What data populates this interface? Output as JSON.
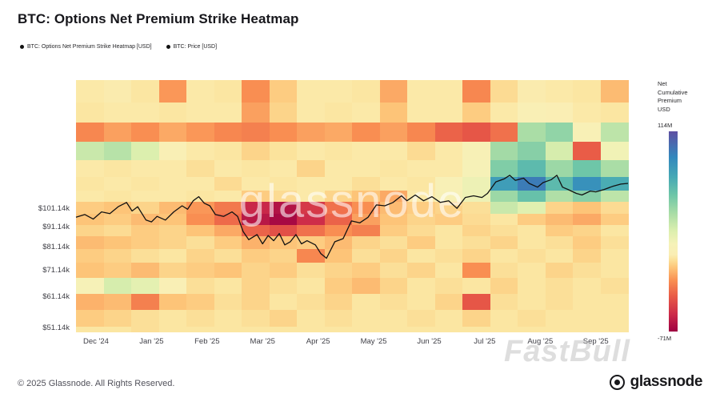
{
  "page": {
    "title": "BTC: Options Net Premium Strike Heatmap",
    "footer_left": "© 2025 Glassnode. All Rights Reserved.",
    "brand": "glassnode",
    "watermark_center": "glassnode",
    "watermark_corner": "FastBull"
  },
  "legend": {
    "items": [
      {
        "label": "BTC: Options Net Premium Strike Heatmap [USD]",
        "marker": "#111111"
      },
      {
        "label": "BTC: Price [USD]",
        "marker": "#111111"
      }
    ]
  },
  "colorbar": {
    "title_lines": [
      "Net",
      "Cumulative",
      "Premium",
      "USD"
    ],
    "max_label": "114M",
    "min_label": "-71M",
    "max_value": 114,
    "min_value": -71
  },
  "colors": {
    "price_line": "#121212",
    "plot_background": "#fbeeb2",
    "scale_stops": [
      {
        "v": -71,
        "c": "#9e0142"
      },
      {
        "v": -55,
        "c": "#cc2a49"
      },
      {
        "v": -38,
        "c": "#e95c47"
      },
      {
        "v": -24,
        "c": "#f98e52"
      },
      {
        "v": -12,
        "c": "#fdc478"
      },
      {
        "v": -4,
        "c": "#fbe39c"
      },
      {
        "v": 0,
        "c": "#faeeb4"
      },
      {
        "v": 10,
        "c": "#f5f2b8"
      },
      {
        "v": 22,
        "c": "#dcefae"
      },
      {
        "v": 38,
        "c": "#aadda6"
      },
      {
        "v": 55,
        "c": "#6ec6a8"
      },
      {
        "v": 72,
        "c": "#45a8b5"
      },
      {
        "v": 90,
        "c": "#3388bd"
      },
      {
        "v": 114,
        "c": "#5e4fa2"
      }
    ]
  },
  "chart_data": {
    "type": "heatmap",
    "title": "BTC: Options Net Premium Strike Heatmap",
    "unit": "Net cumulative options premium per strike, USD millions",
    "legend_position": "top-left",
    "grid": false,
    "x_tick_labels": [
      "Dec '24",
      "Jan '25",
      "Feb '25",
      "Mar '25",
      "Apr '25",
      "May '25",
      "Jun '25",
      "Jul '25",
      "Aug '25",
      "Sep '25"
    ],
    "x_tick_months": [
      0,
      1,
      2,
      3,
      4,
      5,
      6,
      7,
      8,
      9
    ],
    "x_range_months": [
      -0.36,
      9.58
    ],
    "y_scale": "log",
    "y_range_price_usd": [
      49800,
      210000
    ],
    "y_ticks": [
      {
        "label": "$101.14k",
        "price": 101140
      },
      {
        "label": "$91.14k",
        "price": 91140
      },
      {
        "label": "$81.14k",
        "price": 81140
      },
      {
        "label": "$71.14k",
        "price": 71140
      },
      {
        "label": "$61.14k",
        "price": 61140
      },
      {
        "label": "$51.14k",
        "price": 51140
      }
    ],
    "value_domain_musd": [
      -71,
      114
    ],
    "columns": 20,
    "strike_row_boundaries_k": [
      210,
      185,
      165,
      148,
      133,
      121,
      112,
      105,
      98,
      92,
      86,
      80,
      74,
      68,
      62,
      56.5,
      51.5,
      49.8
    ],
    "values_musd": [
      [
        -2,
        -1,
        -3,
        -22,
        -2,
        -3,
        -24,
        -10,
        -2,
        -2,
        -3,
        -18,
        -2,
        -2,
        -26,
        -6,
        -1,
        -2,
        -3,
        -14
      ],
      [
        -3,
        -2,
        -2,
        -3,
        -2,
        -2,
        -20,
        -8,
        -2,
        -3,
        -2,
        -12,
        -2,
        -2,
        -10,
        -2,
        2,
        1,
        -2,
        -3
      ],
      [
        -26,
        -20,
        -24,
        -18,
        -22,
        -26,
        -28,
        -24,
        -20,
        -18,
        -24,
        -20,
        -26,
        -36,
        -40,
        -32,
        38,
        45,
        5,
        32
      ],
      [
        28,
        34,
        22,
        2,
        -2,
        -3,
        -8,
        -4,
        -2,
        -3,
        -2,
        -2,
        -6,
        -2,
        6,
        40,
        48,
        24,
        -38,
        12
      ],
      [
        -2,
        -3,
        -2,
        -2,
        -5,
        -2,
        -3,
        -2,
        -8,
        -2,
        -2,
        -3,
        -2,
        -2,
        8,
        50,
        62,
        42,
        55,
        38
      ],
      [
        -3,
        -2,
        -3,
        -2,
        -2,
        -6,
        -2,
        -3,
        -2,
        -2,
        -5,
        -2,
        -3,
        5,
        14,
        78,
        95,
        62,
        85,
        70
      ],
      [
        -2,
        -3,
        -2,
        -2,
        -3,
        -2,
        -10,
        -6,
        -2,
        -8,
        -12,
        -18,
        -2,
        6,
        14,
        42,
        58,
        36,
        48,
        32
      ],
      [
        -10,
        -12,
        -8,
        -14,
        -22,
        -30,
        -56,
        -64,
        -50,
        -32,
        -24,
        -14,
        -10,
        -8,
        -5,
        28,
        20,
        -8,
        -12,
        -6
      ],
      [
        -12,
        -10,
        -14,
        -12,
        -24,
        -34,
        -62,
        -68,
        -54,
        -36,
        -20,
        -12,
        -8,
        -10,
        -6,
        -3,
        -10,
        -14,
        -18,
        -10
      ],
      [
        -8,
        -6,
        -10,
        -8,
        -12,
        -18,
        -36,
        -42,
        -32,
        -24,
        -28,
        -10,
        -6,
        -3,
        -8,
        -5,
        -3,
        -10,
        -8,
        -3
      ],
      [
        -14,
        -12,
        -10,
        -8,
        -5,
        -10,
        -16,
        -12,
        -10,
        -14,
        -8,
        -5,
        -10,
        -3,
        -5,
        -8,
        -3,
        -5,
        -10,
        -5
      ],
      [
        -10,
        -8,
        -5,
        -3,
        -8,
        -5,
        -10,
        -8,
        -26,
        -12,
        -5,
        -8,
        -3,
        -5,
        -8,
        -3,
        -5,
        -3,
        -8,
        -3
      ],
      [
        -12,
        -10,
        -14,
        -8,
        -10,
        -12,
        -8,
        -10,
        -5,
        -8,
        -10,
        -5,
        -8,
        -3,
        -24,
        -5,
        -3,
        -8,
        -5,
        -3
      ],
      [
        8,
        24,
        18,
        3,
        -5,
        -3,
        -8,
        -5,
        -3,
        -10,
        -14,
        -8,
        -3,
        -5,
        -3,
        -8,
        -3,
        -5,
        -3,
        -5
      ],
      [
        -16,
        -14,
        -28,
        -12,
        -10,
        -5,
        -8,
        -3,
        -5,
        -8,
        -3,
        -5,
        -3,
        -8,
        -40,
        -5,
        -3,
        -5,
        -3,
        -3
      ],
      [
        -10,
        -8,
        -5,
        -3,
        -5,
        -3,
        -5,
        -8,
        -3,
        -5,
        -3,
        -3,
        -5,
        -3,
        -8,
        -3,
        -5,
        -3,
        -3,
        -3
      ],
      [
        -3,
        -3,
        -5,
        -3,
        -3,
        -3,
        -3,
        -3,
        -3,
        -3,
        -3,
        -3,
        -3,
        -3,
        -3,
        -3,
        -3,
        -3,
        -3,
        -3
      ]
    ],
    "price_series": {
      "name": "BTC: Price [USD]",
      "points_month_pricek": [
        [
          -0.36,
          96
        ],
        [
          -0.2,
          97.5
        ],
        [
          -0.05,
          95
        ],
        [
          0.1,
          99
        ],
        [
          0.25,
          98
        ],
        [
          0.4,
          102
        ],
        [
          0.55,
          104.5
        ],
        [
          0.65,
          99.5
        ],
        [
          0.75,
          102
        ],
        [
          0.9,
          94.5
        ],
        [
          1.0,
          93.5
        ],
        [
          1.1,
          96.5
        ],
        [
          1.25,
          94.5
        ],
        [
          1.4,
          99
        ],
        [
          1.55,
          102.5
        ],
        [
          1.65,
          100.5
        ],
        [
          1.75,
          105.5
        ],
        [
          1.85,
          108
        ],
        [
          1.95,
          104
        ],
        [
          2.05,
          102.5
        ],
        [
          2.15,
          97.5
        ],
        [
          2.3,
          96.5
        ],
        [
          2.45,
          99
        ],
        [
          2.55,
          96.5
        ],
        [
          2.65,
          88.5
        ],
        [
          2.75,
          84.5
        ],
        [
          2.9,
          87
        ],
        [
          3.0,
          82.5
        ],
        [
          3.1,
          86.5
        ],
        [
          3.2,
          84
        ],
        [
          3.3,
          87.5
        ],
        [
          3.4,
          82
        ],
        [
          3.5,
          83.5
        ],
        [
          3.6,
          87
        ],
        [
          3.7,
          82.5
        ],
        [
          3.8,
          84
        ],
        [
          3.95,
          82
        ],
        [
          4.05,
          78
        ],
        [
          4.15,
          76
        ],
        [
          4.3,
          83.5
        ],
        [
          4.45,
          85
        ],
        [
          4.6,
          94
        ],
        [
          4.75,
          93
        ],
        [
          4.9,
          96
        ],
        [
          5.05,
          103
        ],
        [
          5.2,
          102.5
        ],
        [
          5.35,
          104.5
        ],
        [
          5.5,
          108.5
        ],
        [
          5.6,
          105.5
        ],
        [
          5.75,
          109
        ],
        [
          5.9,
          105.5
        ],
        [
          6.05,
          108
        ],
        [
          6.2,
          104.5
        ],
        [
          6.35,
          105.5
        ],
        [
          6.5,
          101
        ],
        [
          6.65,
          107.5
        ],
        [
          6.8,
          108.5
        ],
        [
          6.95,
          107.5
        ],
        [
          7.05,
          110
        ],
        [
          7.2,
          117.5
        ],
        [
          7.35,
          119.5
        ],
        [
          7.45,
          122
        ],
        [
          7.55,
          118.5
        ],
        [
          7.7,
          120
        ],
        [
          7.8,
          116.5
        ],
        [
          7.95,
          114
        ],
        [
          8.05,
          117
        ],
        [
          8.2,
          119
        ],
        [
          8.3,
          122
        ],
        [
          8.4,
          114
        ],
        [
          8.5,
          112.5
        ],
        [
          8.65,
          110
        ],
        [
          8.75,
          109
        ],
        [
          8.9,
          111.5
        ],
        [
          9.0,
          111
        ],
        [
          9.15,
          112.5
        ],
        [
          9.3,
          114.5
        ],
        [
          9.45,
          116
        ],
        [
          9.58,
          116.5
        ]
      ]
    }
  }
}
